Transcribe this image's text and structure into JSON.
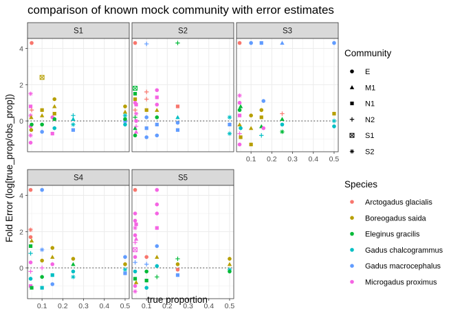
{
  "chart_data": {
    "type": "scatter",
    "title": "comparison of known mock community with error estimates",
    "xlabel": "true proportion",
    "ylabel": "Fold Error (log[true_prop/obs_prop])",
    "xlim": [
      0.03,
      0.52
    ],
    "ylim": [
      -1.7,
      4.55
    ],
    "x_ticks": [
      0.1,
      0.2,
      0.3,
      0.4,
      0.5
    ],
    "x_tick_labels": [
      "0.1",
      "0.2",
      "0.3",
      "0.4",
      "0.5"
    ],
    "y_ticks": [
      0,
      2,
      4
    ],
    "y_tick_labels": [
      "0",
      "2",
      "4"
    ],
    "reference_line": {
      "y": 0,
      "style": "dotted"
    },
    "grid": true,
    "legend_position": "right",
    "panels": [
      "S1",
      "S2",
      "S3",
      "S4",
      "S5"
    ],
    "shape_legend": {
      "title": "Community",
      "items": [
        {
          "label": "E",
          "shape": "circle"
        },
        {
          "label": "M1",
          "shape": "triangle"
        },
        {
          "label": "N1",
          "shape": "square"
        },
        {
          "label": "N2",
          "shape": "plus"
        },
        {
          "label": "S1",
          "shape": "boxed-x"
        },
        {
          "label": "S2",
          "shape": "asterisk"
        }
      ]
    },
    "color_legend": {
      "title": "Species",
      "items": [
        {
          "label": "Arctogadus glacialis",
          "color": "#F8766D"
        },
        {
          "label": "Boreogadus saida",
          "color": "#B79F00"
        },
        {
          "label": "Eleginus gracilis",
          "color": "#00BA38"
        },
        {
          "label": "Gadus chalcogrammus",
          "color": "#00BFC4"
        },
        {
          "label": "Gadus macrocephalus",
          "color": "#619CFF"
        },
        {
          "label": "Microgadus proximus",
          "color": "#F564E3"
        }
      ]
    },
    "series": [
      {
        "panel": "S1",
        "points": [
          [
            0.045,
            -1.2,
            5,
            0
          ],
          [
            0.045,
            -0.8,
            5,
            5
          ],
          [
            0.045,
            -0.3,
            5,
            0
          ],
          [
            0.045,
            0.3,
            5,
            5
          ],
          [
            0.045,
            0.8,
            5,
            2
          ],
          [
            0.045,
            1.5,
            5,
            5
          ],
          [
            0.048,
            -0.5,
            1,
            0
          ],
          [
            0.048,
            0.2,
            1,
            1
          ],
          [
            0.05,
            0.6,
            0,
            3
          ],
          [
            0.05,
            -0.2,
            2,
            0
          ],
          [
            0.05,
            4.3,
            0,
            0
          ],
          [
            0.1,
            2.4,
            1,
            4
          ],
          [
            0.1,
            0.6,
            1,
            2
          ],
          [
            0.1,
            0.3,
            1,
            1
          ],
          [
            0.1,
            -0.6,
            4,
            0
          ],
          [
            0.1,
            -0.2,
            2,
            0
          ],
          [
            0.15,
            0.2,
            5,
            0
          ],
          [
            0.15,
            -0.7,
            5,
            2
          ],
          [
            0.16,
            1.2,
            1,
            0
          ],
          [
            0.16,
            0.8,
            1,
            1
          ],
          [
            0.16,
            0.4,
            1,
            2
          ],
          [
            0.16,
            0.1,
            2,
            0
          ],
          [
            0.16,
            -0.4,
            3,
            0
          ],
          [
            0.25,
            0.3,
            3,
            3
          ],
          [
            0.25,
            0.1,
            3,
            1
          ],
          [
            0.25,
            -0.2,
            3,
            5
          ],
          [
            0.25,
            -0.5,
            4,
            2
          ],
          [
            0.5,
            0.8,
            1,
            0
          ],
          [
            0.5,
            0.5,
            1,
            1
          ],
          [
            0.5,
            0.3,
            3,
            5
          ],
          [
            0.5,
            0.0,
            4,
            2
          ],
          [
            0.5,
            -0.2,
            3,
            0
          ],
          [
            0.5,
            0.1,
            2,
            0
          ]
        ]
      },
      {
        "panel": "S2",
        "points": [
          [
            0.045,
            1.8,
            2,
            4
          ],
          [
            0.045,
            1.5,
            2,
            2
          ],
          [
            0.045,
            1.2,
            1,
            2
          ],
          [
            0.045,
            0.6,
            0,
            3
          ],
          [
            0.045,
            0.2,
            2,
            3
          ],
          [
            0.045,
            -0.4,
            2,
            1
          ],
          [
            0.045,
            -0.8,
            2,
            0
          ],
          [
            0.045,
            4.3,
            0,
            0
          ],
          [
            0.045,
            1.0,
            5,
            0
          ],
          [
            0.05,
            0.9,
            5,
            2
          ],
          [
            0.05,
            0.4,
            5,
            5
          ],
          [
            0.05,
            0.0,
            5,
            0
          ],
          [
            0.05,
            -0.3,
            5,
            3
          ],
          [
            0.05,
            -0.6,
            5,
            1
          ],
          [
            0.1,
            1.6,
            0,
            3
          ],
          [
            0.1,
            1.2,
            0,
            3
          ],
          [
            0.1,
            0.6,
            1,
            2
          ],
          [
            0.1,
            0.2,
            4,
            0
          ],
          [
            0.1,
            -0.4,
            4,
            2
          ],
          [
            0.1,
            -0.9,
            4,
            0
          ],
          [
            0.1,
            4.25,
            4,
            3
          ],
          [
            0.15,
            1.7,
            5,
            0
          ],
          [
            0.15,
            1.3,
            5,
            2
          ],
          [
            0.15,
            0.9,
            5,
            0
          ],
          [
            0.15,
            0.6,
            1,
            1
          ],
          [
            0.15,
            0.2,
            2,
            0
          ],
          [
            0.15,
            -0.2,
            4,
            2
          ],
          [
            0.15,
            -0.8,
            4,
            0
          ],
          [
            0.25,
            0.8,
            0,
            2
          ],
          [
            0.25,
            0.2,
            3,
            1
          ],
          [
            0.25,
            -0.1,
            4,
            0
          ],
          [
            0.25,
            -0.5,
            4,
            2
          ],
          [
            0.25,
            4.3,
            2,
            3
          ],
          [
            0.5,
            0.2,
            3,
            5
          ],
          [
            0.5,
            -0.2,
            4,
            2
          ],
          [
            0.5,
            -0.7,
            3,
            5
          ]
        ]
      },
      {
        "panel": "S3",
        "points": [
          [
            0.045,
            1.4,
            5,
            5
          ],
          [
            0.045,
            1.0,
            5,
            0
          ],
          [
            0.045,
            0.6,
            2,
            0
          ],
          [
            0.045,
            0.3,
            5,
            2
          ],
          [
            0.045,
            -0.2,
            1,
            1
          ],
          [
            0.045,
            -0.7,
            5,
            3
          ],
          [
            0.045,
            -1.3,
            5,
            0
          ],
          [
            0.045,
            4.3,
            0,
            0
          ],
          [
            0.05,
            0.8,
            2,
            1
          ],
          [
            0.05,
            -0.4,
            3,
            0
          ],
          [
            0.05,
            -0.9,
            1,
            2
          ],
          [
            0.1,
            0.3,
            1,
            0
          ],
          [
            0.1,
            -0.4,
            1,
            1
          ],
          [
            0.1,
            -1.3,
            1,
            2
          ],
          [
            0.1,
            4.3,
            4,
            0
          ],
          [
            0.15,
            0.6,
            1,
            0
          ],
          [
            0.15,
            0.2,
            1,
            2
          ],
          [
            0.15,
            -0.3,
            2,
            1
          ],
          [
            0.15,
            -0.8,
            3,
            3
          ],
          [
            0.15,
            4.3,
            4,
            2
          ],
          [
            0.16,
            1.1,
            4,
            0
          ],
          [
            0.16,
            -0.4,
            5,
            0
          ],
          [
            0.25,
            0.4,
            0,
            3
          ],
          [
            0.25,
            0.1,
            2,
            1
          ],
          [
            0.25,
            -0.2,
            3,
            0
          ],
          [
            0.25,
            -0.6,
            2,
            5
          ],
          [
            0.25,
            4.3,
            4,
            1
          ],
          [
            0.5,
            0.4,
            1,
            2
          ],
          [
            0.5,
            0.0,
            3,
            5
          ],
          [
            0.5,
            -0.3,
            3,
            0
          ],
          [
            0.5,
            4.3,
            4,
            0
          ]
        ]
      },
      {
        "panel": "S4",
        "points": [
          [
            0.045,
            2.1,
            0,
            5
          ],
          [
            0.045,
            1.7,
            0,
            0
          ],
          [
            0.045,
            1.2,
            2,
            2
          ],
          [
            0.045,
            0.8,
            3,
            3
          ],
          [
            0.045,
            0.3,
            5,
            0
          ],
          [
            0.045,
            -0.2,
            5,
            3
          ],
          [
            0.045,
            -0.6,
            3,
            0
          ],
          [
            0.045,
            -1.0,
            5,
            2
          ],
          [
            0.045,
            4.3,
            0,
            0
          ],
          [
            0.05,
            1.5,
            1,
            1
          ],
          [
            0.05,
            -1.1,
            2,
            2
          ],
          [
            0.1,
            1.0,
            4,
            5
          ],
          [
            0.1,
            0.4,
            1,
            0
          ],
          [
            0.1,
            0.0,
            5,
            3
          ],
          [
            0.1,
            -0.5,
            2,
            0
          ],
          [
            0.1,
            -1.1,
            3,
            2
          ],
          [
            0.1,
            4.3,
            4,
            0
          ],
          [
            0.15,
            1.1,
            1,
            0
          ],
          [
            0.15,
            0.6,
            1,
            1
          ],
          [
            0.15,
            0.2,
            5,
            0
          ],
          [
            0.15,
            -0.4,
            3,
            2
          ],
          [
            0.15,
            -0.9,
            4,
            0
          ],
          [
            0.25,
            0.5,
            1,
            0
          ],
          [
            0.25,
            0.2,
            2,
            1
          ],
          [
            0.25,
            -0.2,
            3,
            0
          ],
          [
            0.25,
            -0.5,
            3,
            5
          ],
          [
            0.5,
            0.6,
            4,
            0
          ],
          [
            0.5,
            0.2,
            1,
            0
          ],
          [
            0.5,
            -0.1,
            3,
            5
          ],
          [
            0.5,
            -0.3,
            4,
            2
          ]
        ]
      },
      {
        "panel": "S5",
        "points": [
          [
            0.045,
            3.0,
            5,
            0
          ],
          [
            0.045,
            2.6,
            5,
            0
          ],
          [
            0.045,
            2.2,
            5,
            5
          ],
          [
            0.045,
            1.8,
            5,
            0
          ],
          [
            0.045,
            1.4,
            5,
            3
          ],
          [
            0.045,
            1.0,
            5,
            4
          ],
          [
            0.045,
            0.6,
            5,
            0
          ],
          [
            0.045,
            0.3,
            4,
            3
          ],
          [
            0.045,
            -0.2,
            3,
            0
          ],
          [
            0.045,
            -0.6,
            2,
            2
          ],
          [
            0.045,
            -1.0,
            5,
            0
          ],
          [
            0.045,
            -1.3,
            5,
            5
          ],
          [
            0.045,
            4.3,
            0,
            0
          ],
          [
            0.05,
            2.4,
            5,
            2
          ],
          [
            0.05,
            1.6,
            5,
            1
          ],
          [
            0.05,
            -0.8,
            1,
            1
          ],
          [
            0.1,
            0.6,
            0,
            0
          ],
          [
            0.1,
            0.2,
            4,
            3
          ],
          [
            0.1,
            -0.2,
            2,
            0
          ],
          [
            0.1,
            -0.7,
            2,
            2
          ],
          [
            0.1,
            -1.1,
            3,
            0
          ],
          [
            0.15,
            3.5,
            5,
            0
          ],
          [
            0.15,
            3.0,
            5,
            0
          ],
          [
            0.15,
            2.2,
            5,
            2
          ],
          [
            0.15,
            1.2,
            4,
            0
          ],
          [
            0.15,
            0.6,
            1,
            1
          ],
          [
            0.15,
            0.1,
            3,
            0
          ],
          [
            0.15,
            -0.5,
            2,
            3
          ],
          [
            0.15,
            4.3,
            5,
            0
          ],
          [
            0.25,
            0.5,
            2,
            3
          ],
          [
            0.25,
            0.2,
            1,
            0
          ],
          [
            0.25,
            -0.1,
            0,
            0
          ],
          [
            0.25,
            -0.4,
            4,
            2
          ],
          [
            0.5,
            0.5,
            1,
            0
          ],
          [
            0.5,
            0.2,
            1,
            1
          ],
          [
            0.5,
            -0.1,
            3,
            5
          ],
          [
            0.5,
            -0.2,
            2,
            0
          ]
        ]
      }
    ]
  }
}
